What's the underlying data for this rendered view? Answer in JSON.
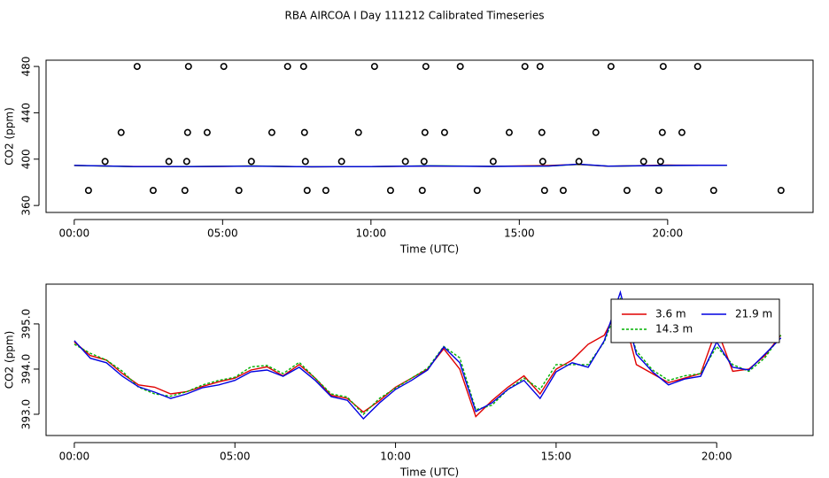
{
  "title": "RBA AIRCOA I  Day 111212  Calibrated Timeseries",
  "chart_data": [
    {
      "type": "scatter",
      "xlabel": "Time (UTC)",
      "ylabel": "CO2 (ppm)",
      "xlim": [
        -0.95,
        24.9
      ],
      "ylim": [
        354,
        485.4
      ],
      "xticks": [
        {
          "value": 0,
          "label": "00:00"
        },
        {
          "value": 5,
          "label": "05:00"
        },
        {
          "value": 10,
          "label": "10:00"
        },
        {
          "value": 15,
          "label": "15:00"
        },
        {
          "value": 20,
          "label": "20:00"
        }
      ],
      "yticks": [
        360,
        400,
        440,
        480
      ],
      "color": "#000000",
      "x": [
        2.12,
        3.85,
        5.04,
        7.19,
        7.73,
        10.12,
        11.85,
        13.01,
        15.19,
        15.7,
        18.09,
        19.85,
        21.01,
        1.58,
        3.82,
        4.48,
        6.66,
        7.76,
        9.58,
        11.82,
        12.48,
        14.66,
        15.76,
        17.58,
        19.82,
        20.48,
        1.04,
        3.19,
        3.79,
        5.97,
        7.79,
        9.01,
        11.16,
        11.79,
        14.12,
        15.79,
        17.01,
        19.19,
        19.76,
        0.48,
        2.66,
        3.73,
        5.55,
        7.85,
        8.48,
        10.66,
        11.73,
        13.58,
        15.85,
        16.48,
        18.63,
        19.7,
        21.55,
        23.82
      ],
      "values": [
        480,
        480,
        480,
        480,
        480,
        480,
        480,
        480,
        480,
        480,
        480,
        480,
        480,
        423,
        423,
        423,
        423,
        423,
        423,
        423,
        423,
        423,
        423,
        423,
        423,
        423,
        398,
        398,
        398,
        398,
        398,
        398,
        398,
        398,
        398,
        398,
        398,
        398,
        398,
        373,
        373,
        373,
        373,
        373,
        373,
        373,
        373,
        373,
        373,
        373,
        373,
        373,
        373,
        373
      ],
      "lines": {
        "x": [
          0,
          2,
          4,
          6,
          8,
          10,
          12,
          14,
          16,
          17,
          18,
          20,
          22
        ],
        "series": [
          {
            "color": "#e00000",
            "values": [
              394.6,
              393.65,
              393.6,
              394.0,
              393.4,
              393.6,
              394.0,
              393.8,
              394.55,
              395.4,
              393.9,
              394.9,
              394.75
            ]
          },
          {
            "color": "#00b000",
            "values": [
              394.55,
              393.6,
              393.65,
              394.1,
              393.45,
              393.6,
              394.25,
              393.8,
              394.1,
              395.5,
              393.95,
              394.5,
              394.75
            ]
          },
          {
            "color": "#0000e0",
            "values": [
              394.63,
              393.61,
              393.59,
              393.98,
              393.39,
              393.55,
              394.14,
              393.75,
              394.04,
              395.7,
              393.94,
              394.6,
              394.69
            ]
          }
        ]
      }
    },
    {
      "type": "line",
      "xlabel": "Time (UTC)",
      "ylabel": "CO2 (ppm)",
      "xlim": [
        -0.88,
        23.0
      ],
      "ylim": [
        392.53,
        395.88
      ],
      "xticks": [
        {
          "value": 0,
          "label": "00:00"
        },
        {
          "value": 5,
          "label": "05:00"
        },
        {
          "value": 10,
          "label": "10:00"
        },
        {
          "value": 15,
          "label": "15:00"
        },
        {
          "value": 20,
          "label": "20:00"
        }
      ],
      "yticks": [
        {
          "value": 393,
          "label": "393.0"
        },
        {
          "value": 394,
          "label": "394.0"
        },
        {
          "value": 395,
          "label": "395.0"
        }
      ],
      "legend": "top-right",
      "x": [
        0,
        0.5,
        1,
        1.5,
        2,
        2.5,
        3,
        3.5,
        4,
        4.5,
        5,
        5.5,
        6,
        6.5,
        7,
        7.5,
        8,
        8.5,
        9,
        9.5,
        10,
        10.5,
        11,
        11.5,
        12,
        12.5,
        13,
        13.5,
        14,
        14.5,
        15,
        15.5,
        16,
        16.5,
        17,
        17.5,
        18,
        18.5,
        19,
        19.5,
        20,
        20.5,
        21,
        21.5,
        22
      ],
      "series": [
        {
          "name": "3.6 m",
          "color": "#e00000",
          "linestyle": "solid",
          "values": [
            394.6,
            394.3,
            394.2,
            393.9,
            393.65,
            393.6,
            393.45,
            393.5,
            393.62,
            393.72,
            393.8,
            393.98,
            394.05,
            393.85,
            394.1,
            393.8,
            393.42,
            393.35,
            393.05,
            393.3,
            393.6,
            393.8,
            394.0,
            394.45,
            394.0,
            392.95,
            393.3,
            393.6,
            393.85,
            393.45,
            394.0,
            394.2,
            394.55,
            394.75,
            395.45,
            394.1,
            393.9,
            393.7,
            393.8,
            393.9,
            394.9,
            393.95,
            394.0,
            394.3,
            394.75
          ]
        },
        {
          "name": "14.3 m",
          "color": "#00b000",
          "linestyle": "dotted",
          "values": [
            394.55,
            394.35,
            394.2,
            393.95,
            393.6,
            393.45,
            393.4,
            393.5,
            393.65,
            393.75,
            393.82,
            394.05,
            394.08,
            393.9,
            394.15,
            393.8,
            393.45,
            393.38,
            393.0,
            393.35,
            393.58,
            393.8,
            394.02,
            394.5,
            394.25,
            393.1,
            393.2,
            393.55,
            393.8,
            393.55,
            394.1,
            394.1,
            394.1,
            394.6,
            395.55,
            394.4,
            393.98,
            393.75,
            393.85,
            393.9,
            394.5,
            394.1,
            393.95,
            394.25,
            394.75
          ]
        },
        {
          "name": "21.9 m",
          "color": "#0000e0",
          "linestyle": "solid",
          "values": [
            394.63,
            394.24,
            394.14,
            393.84,
            393.61,
            393.49,
            393.35,
            393.45,
            393.59,
            393.65,
            393.75,
            393.94,
            393.98,
            393.84,
            394.04,
            393.75,
            393.39,
            393.31,
            392.9,
            393.25,
            393.55,
            393.75,
            393.98,
            394.49,
            394.14,
            393.06,
            393.25,
            393.55,
            393.75,
            393.35,
            393.94,
            394.14,
            394.04,
            394.63,
            395.7,
            394.33,
            393.94,
            393.65,
            393.78,
            393.84,
            394.6,
            394.04,
            393.98,
            394.33,
            394.69
          ]
        }
      ]
    }
  ]
}
